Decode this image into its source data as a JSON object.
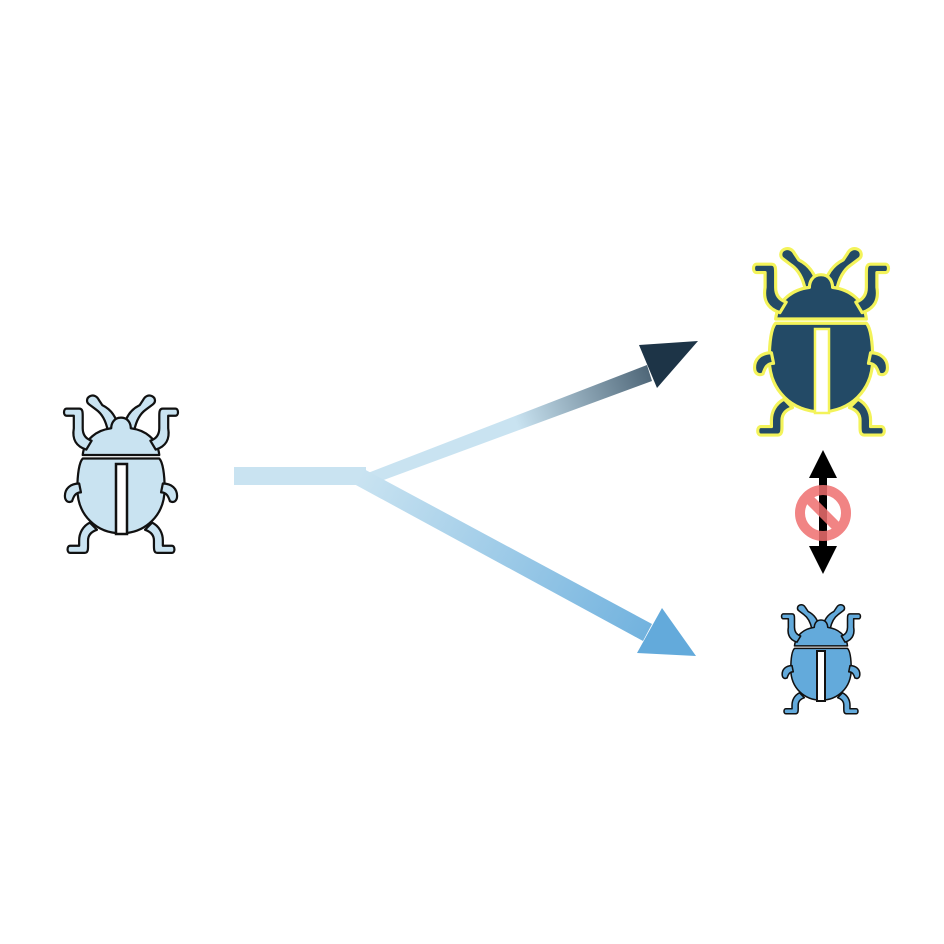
{
  "colors": {
    "background": "#ffffff",
    "ancestor_beetle": "#c9e3f1",
    "dark_beetle": "#234a66",
    "dark_beetle_outline": "#f3f35a",
    "small_beetle": "#63aadb",
    "outline": "#111111",
    "arrow_light": "#c9e3f1",
    "arrow_dark": "#1d3447",
    "arrow_blue": "#63aadb",
    "prohibition": "#ef6f6f",
    "double_arrow": "#000000"
  },
  "icons": {
    "ancestor": "beetle-icon",
    "descendant_dark": "beetle-icon",
    "descendant_light": "beetle-icon",
    "barrier": "prohibition-icon",
    "barrier_arrow": "double-headed-arrow-icon"
  }
}
